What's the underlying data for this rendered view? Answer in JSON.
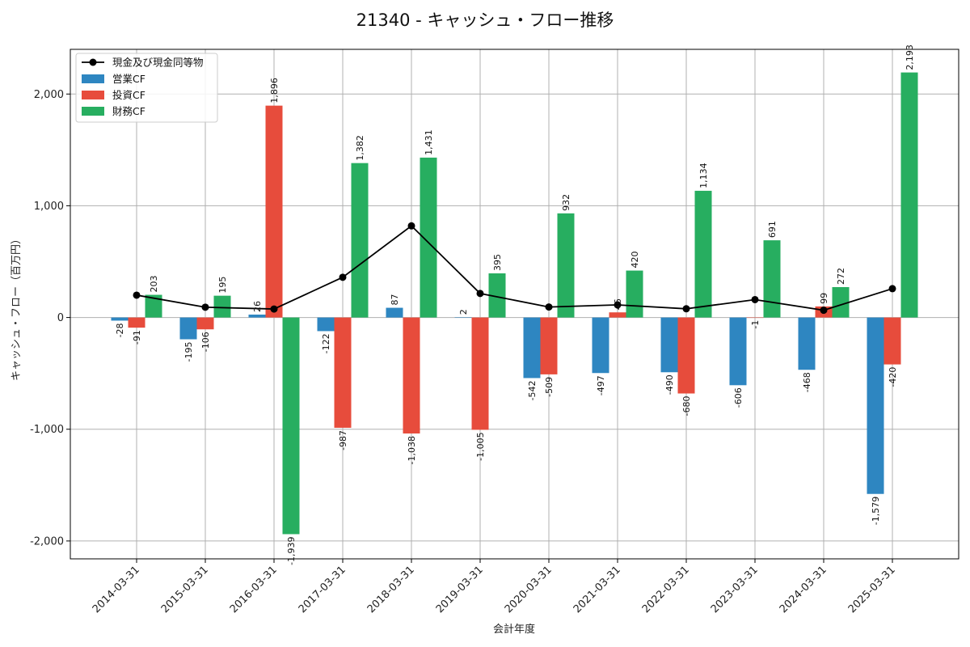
{
  "chart_data": {
    "type": "bar",
    "title": "21340 - キャッシュ・フロー推移",
    "xlabel": "会計年度",
    "ylabel": "キャッシュ・フロー（百万円）",
    "categories": [
      "2014-03-31",
      "2015-03-31",
      "2016-03-31",
      "2017-03-31",
      "2018-03-31",
      "2019-03-31",
      "2020-03-31",
      "2021-03-31",
      "2022-03-31",
      "2023-03-31",
      "2024-03-31",
      "2025-03-31"
    ],
    "ylim": [
      -2160,
      2400
    ],
    "yticks": [
      -2000,
      -1000,
      0,
      1000,
      2000
    ],
    "ytick_labels": [
      "-2,000",
      "-1,000",
      "0",
      "1,000",
      "2,000"
    ],
    "grid": true,
    "legend_position": "top-left",
    "series": [
      {
        "name": "営業CF",
        "color": "#2e86c1",
        "values": [
          -28,
          -195,
          26,
          -122,
          87,
          2,
          -542,
          -497,
          -490,
          -606,
          -468,
          -1579
        ],
        "labels": [
          "-28",
          "-195",
          "26",
          "-122",
          "87",
          "2",
          "-542",
          "-497",
          "-490",
          "-606",
          "-468",
          "-1,579"
        ]
      },
      {
        "name": "投資CF",
        "color": "#e74c3c",
        "values": [
          -91,
          -106,
          1896,
          -987,
          -1038,
          -1005,
          -509,
          46,
          -680,
          -1,
          99,
          -420
        ],
        "labels": [
          "-91",
          "-106",
          "1,896",
          "-987",
          "-1,038",
          "-1,005",
          "-509",
          "46",
          "-680",
          "-1",
          "99",
          "-420"
        ]
      },
      {
        "name": "財務CF",
        "color": "#27ae60",
        "values": [
          203,
          195,
          -1939,
          1382,
          1431,
          395,
          932,
          420,
          1134,
          691,
          272,
          2193
        ],
        "labels": [
          "203",
          "195",
          "-1,939",
          "1,382",
          "1,431",
          "395",
          "932",
          "420",
          "1,134",
          "691",
          "272",
          "2,193"
        ]
      }
    ],
    "line": {
      "name": "現金及び現金同等物",
      "color": "#000000",
      "values": [
        200,
        92,
        76,
        360,
        820,
        215,
        94,
        113,
        78,
        160,
        65,
        258
      ]
    }
  }
}
